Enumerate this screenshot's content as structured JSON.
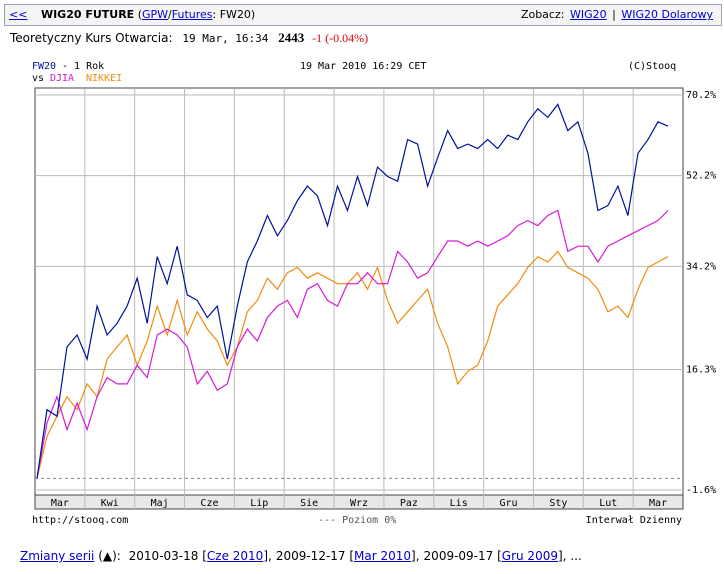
{
  "header": {
    "back": "<<",
    "title": "WIG20 FUTURE",
    "source": [
      "(",
      "GPW",
      "/",
      "Futures",
      ": FW20)"
    ],
    "see_label": "Zobacz:",
    "links": [
      "WIG20",
      "|",
      "WIG20 Dolarowy"
    ]
  },
  "quote": {
    "label": "Teoretyczny Kurs Otwarcia:",
    "time": "19 Mar, 16:34",
    "price": "2443",
    "change": "-1",
    "change_pct": "(-0.04%)"
  },
  "chart_data": {
    "type": "line",
    "period": "- 1 Rok",
    "vs": "vs",
    "date": "19 Mar 2010 16:29 CET",
    "copyright": "(C)Stooq",
    "months": [
      "Mar",
      "Kwi",
      "Maj",
      "Cze",
      "Lip",
      "Sie",
      "Wrz",
      "Paz",
      "Lis",
      "Gru",
      "Sty",
      "Lut",
      "Mar"
    ],
    "series": [
      {
        "name": "FW20",
        "color": "#00129a",
        "values": [
          0,
          10,
          9,
          20,
          22,
          18,
          27,
          22,
          24,
          27,
          32,
          24,
          36,
          31,
          38,
          29,
          28,
          25,
          27,
          18,
          27,
          35,
          39,
          44,
          40,
          43,
          47,
          50,
          48,
          42,
          50,
          45,
          52,
          46,
          54,
          52,
          51,
          60,
          59,
          50,
          56,
          62,
          58,
          59,
          58,
          60,
          58,
          61,
          60,
          64,
          67,
          65,
          68,
          62,
          64,
          57,
          45,
          46,
          50,
          44,
          57,
          60,
          64,
          63
        ]
      },
      {
        "name": "DJIA",
        "color": "#d61ad6",
        "values": [
          0,
          8,
          12,
          7,
          11,
          7,
          12,
          15,
          14,
          14,
          17,
          15,
          22,
          23,
          22,
          20,
          14,
          16,
          13,
          14,
          20,
          23,
          21,
          25,
          27,
          28,
          25,
          30,
          31,
          28,
          27,
          31,
          31,
          33,
          31,
          31,
          37,
          35,
          32,
          33,
          36,
          39,
          39,
          38,
          39,
          38,
          39,
          40,
          42,
          43,
          42,
          44,
          45,
          37,
          38,
          38,
          35,
          38,
          39,
          40,
          41,
          42,
          43,
          45
        ]
      },
      {
        "name": "NIKKEI",
        "color": "#f08c10",
        "values": [
          0,
          6,
          9,
          12,
          10,
          14,
          12,
          18,
          20,
          22,
          17,
          21,
          27,
          22,
          28,
          22,
          26,
          23,
          21,
          17,
          20,
          26,
          28,
          32,
          30,
          33,
          34,
          32,
          33,
          32,
          31,
          31,
          33,
          30,
          34,
          28,
          24,
          26,
          28,
          30,
          24,
          20,
          14,
          16,
          17,
          21,
          27,
          29,
          31,
          34,
          36,
          35,
          37,
          34,
          33,
          32,
          30,
          26,
          27,
          25,
          30,
          34,
          35,
          36
        ]
      }
    ],
    "ylim": [
      -1.6,
      70.2
    ],
    "yticks": [
      {
        "value": 70.2,
        "label": "70.2%"
      },
      {
        "value": 52.2,
        "label": "52.2%"
      },
      {
        "value": 34.2,
        "label": "34.2%"
      },
      {
        "value": 16.3,
        "label": "16.3%"
      },
      {
        "value": -1.6,
        "label": "-1.6%"
      }
    ],
    "log_scale": true,
    "grid": true,
    "baseline": 0,
    "baseline_label": "--- Poziom 0%",
    "source_url": "http://stooq.com",
    "interval": "Interwał Dzienny"
  },
  "footer": {
    "label": "Zmiany serii",
    "arrow": "(▲):",
    "entries": [
      {
        "text": "2010-03-18 [",
        "link": "Cze 2010",
        "end": "],"
      },
      {
        "text": "2009-12-17 [",
        "link": "Mar 2010",
        "end": "],"
      },
      {
        "text": "2009-09-17 [",
        "link": "Gru 2009",
        "end": "],"
      }
    ],
    "more": "..."
  }
}
